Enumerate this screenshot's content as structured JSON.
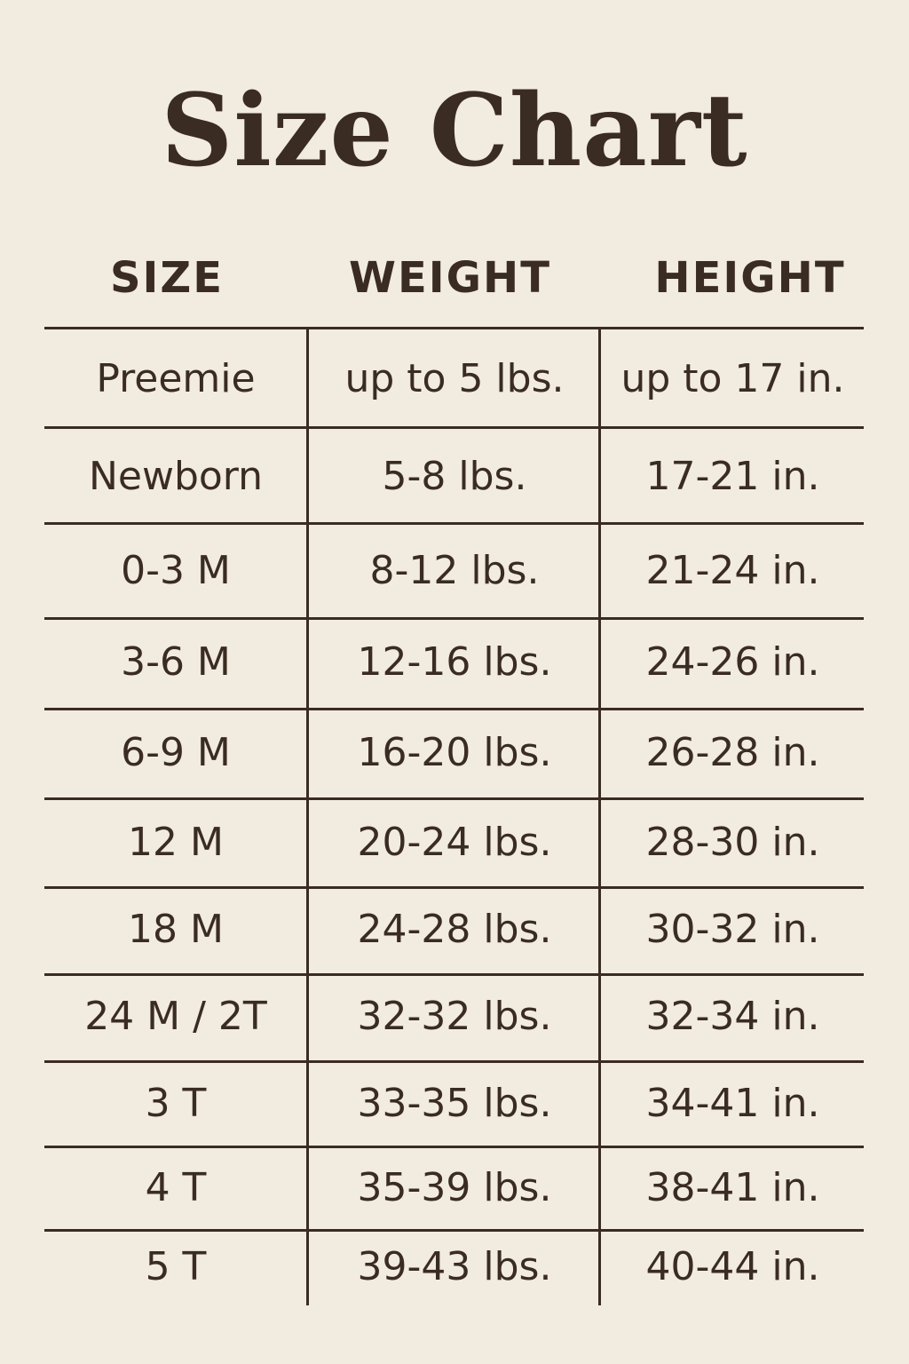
{
  "title": "Size Chart",
  "headers": [
    "SIZE",
    "WEIGHT",
    "HEIGHT"
  ],
  "rows": [
    [
      "Preemie",
      "up to 5 lbs.",
      "up to 17 in."
    ],
    [
      "Newborn",
      "5-8 lbs.",
      "17-21 in."
    ],
    [
      "0-3 M",
      "8-12 lbs.",
      "21-24 in."
    ],
    [
      "3-6 M",
      "12-16 lbs.",
      "24-26 in."
    ],
    [
      "6-9 M",
      "16-20 lbs.",
      "26-28 in."
    ],
    [
      "12 M",
      "20-24 lbs.",
      "28-30 in."
    ],
    [
      "18 M",
      "24-28 lbs.",
      "30-32 in."
    ],
    [
      "24 M / 2T",
      "32-32 lbs.",
      "32-34 in."
    ],
    [
      "3 T",
      "33-35 lbs.",
      "34-41 in."
    ],
    [
      "4 T",
      "35-39 lbs.",
      "38-41 in."
    ],
    [
      "5 T",
      "39-43 lbs.",
      "40-44 in."
    ]
  ],
  "colors": {
    "background": "#f2ebe0",
    "text": "#3a2c22"
  }
}
